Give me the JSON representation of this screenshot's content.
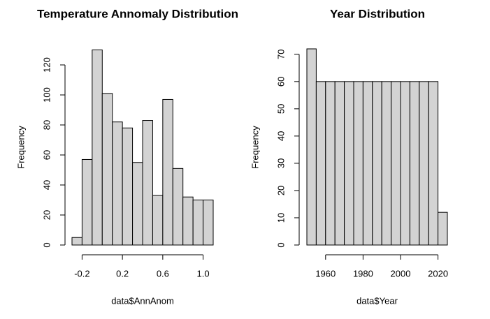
{
  "chart_data": [
    {
      "type": "histogram",
      "title": "Temperature Annomaly Distribution",
      "x_label": "data$AnnAnom",
      "y_label": "Frequency",
      "bins": [
        -0.3,
        -0.2,
        -0.1,
        0,
        0.1,
        0.2,
        0.3,
        0.4,
        0.5,
        0.6,
        0.7,
        0.8,
        0.9,
        1.0,
        1.1
      ],
      "values": [
        5,
        57,
        130,
        101,
        82,
        78,
        55,
        83,
        33,
        97,
        51,
        32,
        30,
        30
      ],
      "color": "#d3d3d3",
      "xlim": [
        -0.3,
        1.1
      ],
      "ylim": [
        0,
        130
      ],
      "xticks": [
        -0.2,
        0.2,
        0.6,
        {
          "value": 1,
          "label": "1.0"
        }
      ],
      "yticks": [
        0,
        20,
        40,
        60,
        80,
        100,
        120
      ]
    },
    {
      "type": "histogram",
      "title": "Year Distribution",
      "x_label": "data$Year",
      "y_label": "Frequency",
      "bins": [
        1950,
        1955,
        1960,
        1965,
        1970,
        1975,
        1980,
        1985,
        1990,
        1995,
        2000,
        2005,
        2010,
        2015,
        2020,
        2025
      ],
      "values": [
        72,
        60,
        60,
        60,
        60,
        60,
        60,
        60,
        60,
        60,
        60,
        60,
        60,
        60,
        12
      ],
      "color": "#d3d3d3",
      "xlim": [
        1950,
        2025
      ],
      "ylim": [
        0,
        72
      ],
      "xticks": [
        1960,
        1980,
        2000,
        2020
      ],
      "yticks": [
        0,
        10,
        20,
        30,
        40,
        50,
        60,
        70
      ]
    }
  ]
}
